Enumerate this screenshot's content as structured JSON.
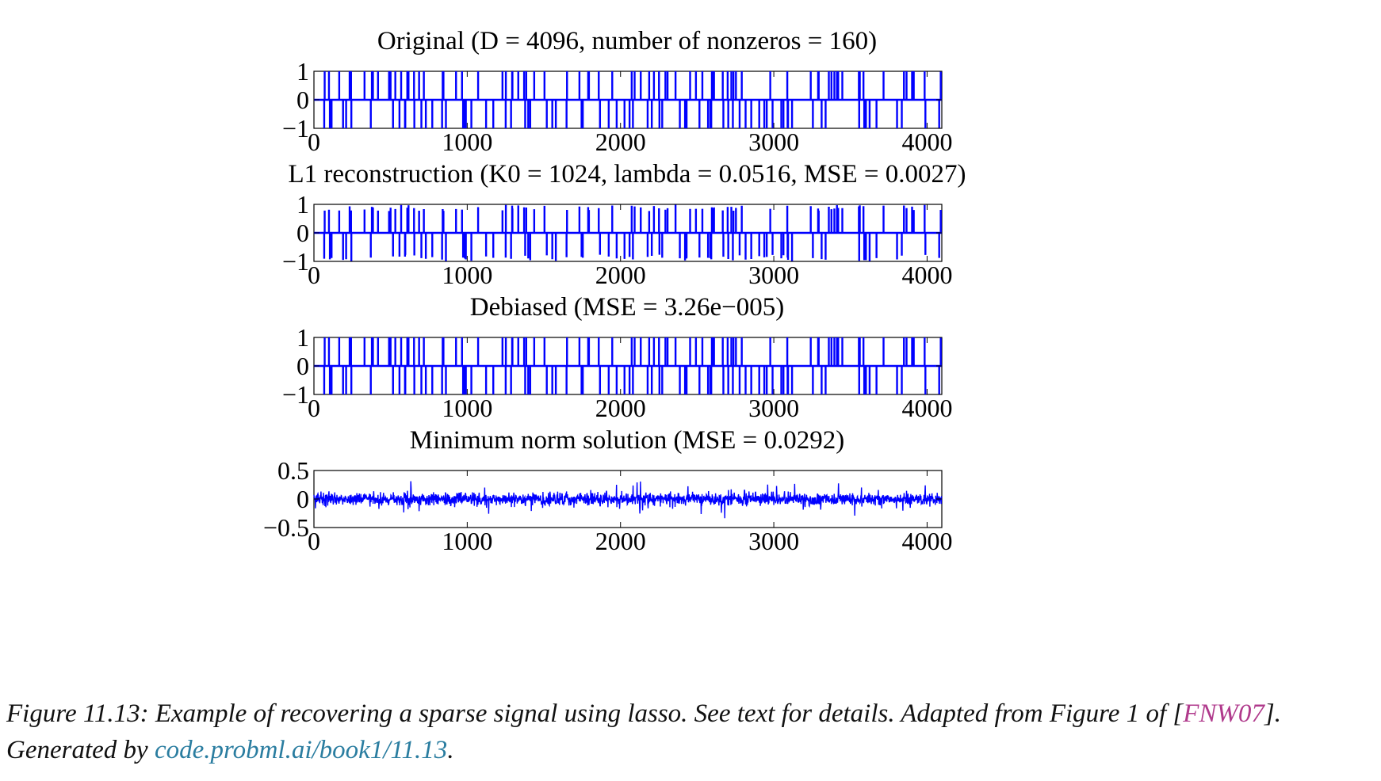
{
  "caption": {
    "text_before": "Figure 11.13: Example of recovering a sparse signal using lasso. See text for details. Adapted from Figure 1 of [",
    "ref": "FNW07",
    "text_middle": "]. Generated by ",
    "link": "code.probml.ai/book1/11.13",
    "text_after": "."
  },
  "colors": {
    "line": "#0000ff",
    "axes": "#000000",
    "ref": "#b03a8c",
    "link": "#2a7da0"
  },
  "chart_data": [
    {
      "type": "line",
      "title": "Original (D = 4096, number of nonzeros = 160)",
      "xlim": [
        0,
        4096
      ],
      "ylim": [
        -1,
        1
      ],
      "xticks": [
        0,
        1000,
        2000,
        3000,
        4000
      ],
      "xtick_labels": [
        "0",
        "1000",
        "2000",
        "3000",
        "4000"
      ],
      "yticks": [
        1,
        0,
        -1
      ],
      "ytick_labels": [
        "1",
        "0",
        "−1"
      ],
      "signal": "sparse_spikes",
      "n_points": 4096,
      "n_spikes": 160,
      "spike_amplitude": 1,
      "noise_level": 0
    },
    {
      "type": "line",
      "title": "L1 reconstruction (K0 = 1024, lambda = 0.0516, MSE = 0.0027)",
      "xlim": [
        0,
        4096
      ],
      "ylim": [
        -1,
        1
      ],
      "xticks": [
        0,
        1000,
        2000,
        3000,
        4000
      ],
      "xtick_labels": [
        "0",
        "1000",
        "2000",
        "3000",
        "4000"
      ],
      "yticks": [
        1,
        0,
        -1
      ],
      "ytick_labels": [
        "1",
        "0",
        "−1"
      ],
      "signal": "sparse_spikes",
      "n_points": 4096,
      "n_spikes": 160,
      "spike_amplitude": 0.9,
      "noise_level": 0
    },
    {
      "type": "line",
      "title": "Debiased (MSE = 3.26e−005)",
      "xlim": [
        0,
        4096
      ],
      "ylim": [
        -1,
        1
      ],
      "xticks": [
        0,
        1000,
        2000,
        3000,
        4000
      ],
      "xtick_labels": [
        "0",
        "1000",
        "2000",
        "3000",
        "4000"
      ],
      "yticks": [
        1,
        0,
        -1
      ],
      "ytick_labels": [
        "1",
        "0",
        "−1"
      ],
      "signal": "sparse_spikes",
      "n_points": 4096,
      "n_spikes": 160,
      "spike_amplitude": 1,
      "noise_level": 0
    },
    {
      "type": "line",
      "title": "Minimum norm solution (MSE = 0.0292)",
      "xlim": [
        0,
        4096
      ],
      "ylim": [
        -0.5,
        0.5
      ],
      "xticks": [
        0,
        1000,
        2000,
        3000,
        4000
      ],
      "xtick_labels": [
        "0",
        "1000",
        "2000",
        "3000",
        "4000"
      ],
      "yticks": [
        0.5,
        0,
        -0.5
      ],
      "ytick_labels": [
        "0.5",
        "0",
        "−0.5"
      ],
      "signal": "dense_noise",
      "n_points": 4096,
      "noise_level": 0.1
    }
  ]
}
